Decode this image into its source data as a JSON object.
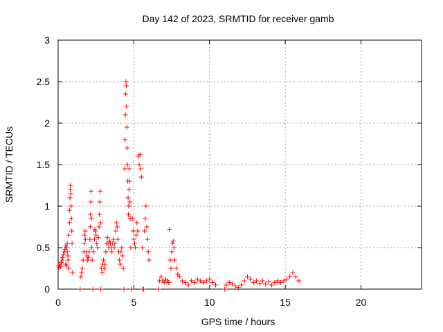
{
  "chart_data": {
    "type": "scatter",
    "title": "Day 142 of 2023, SRMTID for receiver gamb",
    "xlabel": "GPS time / hours",
    "ylabel": "SRMTID / TECUs",
    "xlim": [
      0,
      24
    ],
    "ylim": [
      0,
      3
    ],
    "xticks": [
      0,
      5,
      10,
      15,
      20
    ],
    "yticks": [
      0,
      0.5,
      1,
      1.5,
      2,
      2.5,
      3
    ],
    "ytick_labels": [
      "0",
      "0.5",
      "1",
      "1.5",
      "2",
      "2.5",
      "3"
    ],
    "grid": true,
    "marker": "+",
    "series": [
      {
        "name": "SRMTID",
        "color": "#ff0000",
        "points": [
          [
            0.0,
            0.28
          ],
          [
            0.05,
            0.26
          ],
          [
            0.1,
            0.3
          ],
          [
            0.15,
            0.27
          ],
          [
            0.2,
            0.32
          ],
          [
            0.25,
            0.35
          ],
          [
            0.3,
            0.38
          ],
          [
            0.35,
            0.42
          ],
          [
            0.4,
            0.45
          ],
          [
            0.45,
            0.48
          ],
          [
            0.5,
            0.52
          ],
          [
            0.5,
            0.3
          ],
          [
            0.55,
            0.5
          ],
          [
            0.55,
            0.28
          ],
          [
            0.6,
            0.45
          ],
          [
            0.6,
            0.55
          ],
          [
            0.65,
            0.35
          ],
          [
            0.65,
            0.4
          ],
          [
            0.7,
            0.25
          ],
          [
            0.7,
            0.65
          ],
          [
            0.75,
            0.8
          ],
          [
            0.75,
            0.95
          ],
          [
            0.78,
            1.1
          ],
          [
            0.8,
            1.2
          ],
          [
            0.82,
            1.25
          ],
          [
            0.84,
            1.15
          ],
          [
            0.86,
            1.0
          ],
          [
            0.88,
            0.85
          ],
          [
            0.9,
            0.7
          ],
          [
            0.92,
            0.55
          ],
          [
            0.95,
            0.2
          ],
          [
            1.45,
            0.0
          ],
          [
            1.5,
            0.15
          ],
          [
            1.55,
            0.2
          ],
          [
            1.6,
            0.25
          ],
          [
            1.65,
            0.35
          ],
          [
            1.7,
            0.45
          ],
          [
            1.72,
            0.55
          ],
          [
            1.75,
            0.65
          ],
          [
            1.78,
            0.7
          ],
          [
            1.8,
            0.6
          ],
          [
            1.85,
            0.45
          ],
          [
            1.9,
            0.4
          ],
          [
            1.95,
            0.35
          ],
          [
            2.0,
            0.38
          ],
          [
            2.05,
            0.45
          ],
          [
            2.1,
            0.6
          ],
          [
            2.12,
            0.75
          ],
          [
            2.14,
            0.9
          ],
          [
            2.16,
            1.05
          ],
          [
            2.18,
            1.18
          ],
          [
            2.2,
            0.85
          ],
          [
            2.22,
            0.5
          ],
          [
            2.25,
            0.35
          ],
          [
            2.3,
            0.0
          ],
          [
            2.35,
            0.45
          ],
          [
            2.4,
            0.6
          ],
          [
            2.42,
            0.72
          ],
          [
            2.45,
            0.7
          ],
          [
            2.5,
            0.65
          ],
          [
            2.55,
            0.55
          ],
          [
            2.6,
            0.5
          ],
          [
            2.65,
            0.62
          ],
          [
            2.7,
            0.75
          ],
          [
            2.72,
            0.9
          ],
          [
            2.75,
            1.05
          ],
          [
            2.78,
            1.18
          ],
          [
            2.8,
            0.8
          ],
          [
            2.82,
            0.0
          ],
          [
            2.85,
            0.25
          ],
          [
            2.9,
            0.2
          ],
          [
            2.95,
            0.3
          ],
          [
            3.0,
            0.35
          ],
          [
            3.05,
            0.25
          ],
          [
            3.1,
            0.3
          ],
          [
            3.15,
            0.45
          ],
          [
            3.2,
            0.55
          ],
          [
            3.25,
            0.62
          ],
          [
            3.3,
            0.55
          ],
          [
            3.35,
            0.5
          ],
          [
            3.4,
            0.58
          ],
          [
            3.45,
            0.55
          ],
          [
            3.5,
            0.5
          ],
          [
            3.55,
            0.45
          ],
          [
            3.6,
            0.55
          ],
          [
            3.65,
            0.6
          ],
          [
            3.7,
            0.5
          ],
          [
            3.75,
            0.55
          ],
          [
            3.8,
            0.7
          ],
          [
            3.85,
            0.8
          ],
          [
            3.9,
            0.75
          ],
          [
            3.95,
            0.6
          ],
          [
            4.0,
            0.45
          ],
          [
            4.05,
            0.35
          ],
          [
            4.1,
            0.3
          ],
          [
            4.15,
            0.45
          ],
          [
            4.2,
            0.5
          ],
          [
            4.25,
            0.4
          ],
          [
            4.3,
            0.25
          ],
          [
            4.35,
            0.0
          ],
          [
            4.4,
            1.45
          ],
          [
            4.42,
            1.8
          ],
          [
            4.44,
            2.1
          ],
          [
            4.46,
            2.35
          ],
          [
            4.48,
            2.5
          ],
          [
            4.5,
            2.45
          ],
          [
            4.52,
            2.2
          ],
          [
            4.54,
            1.95
          ],
          [
            4.56,
            1.7
          ],
          [
            4.58,
            1.5
          ],
          [
            4.6,
            1.3
          ],
          [
            4.62,
            1.1
          ],
          [
            4.64,
            0.9
          ],
          [
            4.66,
            1.0
          ],
          [
            4.68,
            1.2
          ],
          [
            4.7,
            1.45
          ],
          [
            4.72,
            1.3
          ],
          [
            4.74,
            1.05
          ],
          [
            4.76,
            0.85
          ],
          [
            4.8,
            0.5
          ],
          [
            4.85,
            0.0
          ],
          [
            4.9,
            0.85
          ],
          [
            4.95,
            0.7
          ],
          [
            5.0,
            0.6
          ],
          [
            5.05,
            0.55
          ],
          [
            5.1,
            0.5
          ],
          [
            5.15,
            0.65
          ],
          [
            5.2,
            0.8
          ],
          [
            5.25,
            0.7
          ],
          [
            5.3,
            1.6
          ],
          [
            5.35,
            1.5
          ],
          [
            5.4,
            1.62
          ],
          [
            5.45,
            1.45
          ],
          [
            5.5,
            1.35
          ],
          [
            5.55,
            0.5
          ],
          [
            5.6,
            0.0
          ],
          [
            5.65,
            0.0
          ],
          [
            5.7,
            0.7
          ],
          [
            5.75,
            0.85
          ],
          [
            5.8,
            1.0
          ],
          [
            5.85,
            0.75
          ],
          [
            5.9,
            0.6
          ],
          [
            5.95,
            0.45
          ],
          [
            6.0,
            0.35
          ],
          [
            6.65,
            0.0
          ],
          [
            6.7,
            0.1
          ],
          [
            6.8,
            0.15
          ],
          [
            6.9,
            0.1
          ],
          [
            7.0,
            0.08
          ],
          [
            7.1,
            0.12
          ],
          [
            7.2,
            0.1
          ],
          [
            7.3,
            0.08
          ],
          [
            7.35,
            0.72
          ],
          [
            7.4,
            0.35
          ],
          [
            7.45,
            0.25
          ],
          [
            7.5,
            0.45
          ],
          [
            7.55,
            0.55
          ],
          [
            7.6,
            0.58
          ],
          [
            7.65,
            0.5
          ],
          [
            7.7,
            0.35
          ],
          [
            7.8,
            0.25
          ],
          [
            7.9,
            0.18
          ],
          [
            8.0,
            0.15
          ],
          [
            8.2,
            0.1
          ],
          [
            8.4,
            0.08
          ],
          [
            8.6,
            0.05
          ],
          [
            8.8,
            0.1
          ],
          [
            9.0,
            0.08
          ],
          [
            9.2,
            0.12
          ],
          [
            9.4,
            0.1
          ],
          [
            9.6,
            0.08
          ],
          [
            9.8,
            0.1
          ],
          [
            10.0,
            0.12
          ],
          [
            10.2,
            0.08
          ],
          [
            10.4,
            0.05
          ],
          [
            11.0,
            0.0
          ],
          [
            11.1,
            0.05
          ],
          [
            11.3,
            0.08
          ],
          [
            11.5,
            0.06
          ],
          [
            11.7,
            0.04
          ],
          [
            11.9,
            0.02
          ],
          [
            12.1,
            0.05
          ],
          [
            12.3,
            0.1
          ],
          [
            12.5,
            0.15
          ],
          [
            12.7,
            0.12
          ],
          [
            12.9,
            0.08
          ],
          [
            13.1,
            0.1
          ],
          [
            13.3,
            0.07
          ],
          [
            13.5,
            0.1
          ],
          [
            13.7,
            0.06
          ],
          [
            13.9,
            0.09
          ],
          [
            14.1,
            0.05
          ],
          [
            14.3,
            0.08
          ],
          [
            14.5,
            0.1
          ],
          [
            14.7,
            0.08
          ],
          [
            14.9,
            0.1
          ],
          [
            15.1,
            0.12
          ],
          [
            15.3,
            0.15
          ],
          [
            15.5,
            0.2
          ],
          [
            15.7,
            0.15
          ],
          [
            15.9,
            0.1
          ]
        ]
      }
    ]
  }
}
